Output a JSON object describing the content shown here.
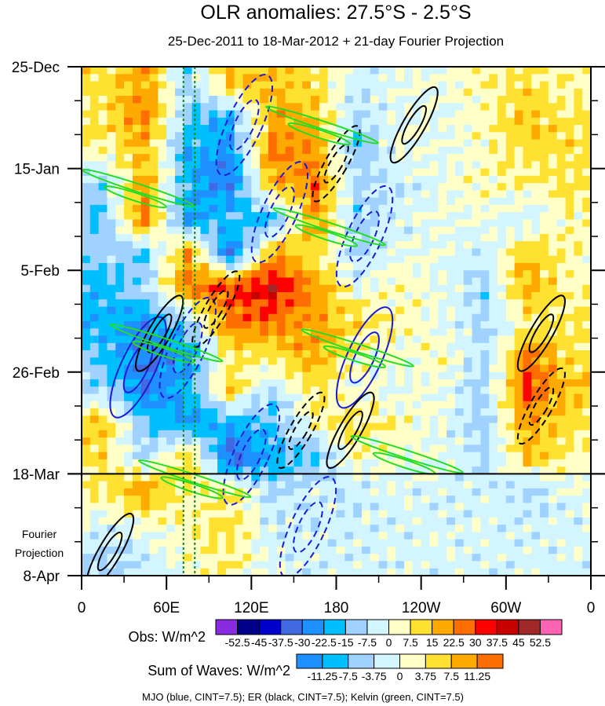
{
  "chart_data": {
    "type": "heatmap",
    "title": "OLR anomalies: 27.5°S - 2.5°S",
    "subtitle": "25-Dec-2011 to 18-Mar-2012 + 21-day Fourier Projection",
    "x_ticks": [
      {
        "lon": 0,
        "label": "0"
      },
      {
        "lon": 60,
        "label": "60E"
      },
      {
        "lon": 120,
        "label": "120E"
      },
      {
        "lon": 180,
        "label": "180"
      },
      {
        "lon": 240,
        "label": "120W"
      },
      {
        "lon": 300,
        "label": "60W"
      },
      {
        "lon": 360,
        "label": "0"
      }
    ],
    "y_ticks": [
      {
        "day": 0,
        "label": "25-Dec"
      },
      {
        "day": 21,
        "label": "15-Jan"
      },
      {
        "day": 42,
        "label": "5-Feb"
      },
      {
        "day": 63,
        "label": "26-Feb"
      },
      {
        "day": 84,
        "label": "18-Mar"
      },
      {
        "day": 105,
        "label": "8-Apr"
      }
    ],
    "ylim_days": [
      0,
      105
    ],
    "xlim_lon": [
      0,
      360
    ],
    "projection_start_day": 84,
    "projection_label": [
      "Fourier",
      "Projection"
    ],
    "grid_lons": [
      15,
      45,
      75,
      105,
      135,
      165,
      195,
      225,
      255,
      285,
      315,
      345
    ],
    "grid_days": [
      3.5,
      10.5,
      17.5,
      24.5,
      31.5,
      38.5,
      45.5,
      52.5,
      59.5,
      66.5,
      73.5,
      80.5,
      87.5,
      94.5,
      101.5
    ],
    "olr_values": [
      [
        10,
        20,
        -10,
        15,
        15,
        10,
        -5,
        0,
        0,
        5,
        10,
        5
      ],
      [
        10,
        25,
        -15,
        -20,
        20,
        15,
        -10,
        0,
        0,
        5,
        15,
        10
      ],
      [
        5,
        15,
        -20,
        -25,
        25,
        20,
        -15,
        0,
        0,
        5,
        10,
        10
      ],
      [
        -10,
        20,
        -20,
        -30,
        15,
        25,
        -10,
        -5,
        0,
        5,
        5,
        10
      ],
      [
        -15,
        25,
        -25,
        -15,
        -20,
        20,
        -10,
        -5,
        0,
        0,
        -5,
        5
      ],
      [
        -10,
        -15,
        20,
        -30,
        20,
        10,
        -10,
        0,
        0,
        -5,
        15,
        5
      ],
      [
        -20,
        -10,
        25,
        30,
        40,
        20,
        0,
        5,
        0,
        -10,
        20,
        5
      ],
      [
        -20,
        -25,
        -10,
        25,
        25,
        20,
        10,
        5,
        0,
        -10,
        5,
        10
      ],
      [
        -15,
        -30,
        -25,
        10,
        10,
        20,
        5,
        0,
        5,
        -10,
        25,
        10
      ],
      [
        -10,
        -30,
        -20,
        15,
        -10,
        10,
        0,
        0,
        0,
        -10,
        30,
        15
      ],
      [
        15,
        -15,
        -25,
        -20,
        -15,
        5,
        10,
        5,
        0,
        -10,
        20,
        10
      ],
      [
        10,
        -10,
        15,
        -35,
        -20,
        -15,
        5,
        0,
        0,
        -10,
        15,
        5
      ],
      [
        10,
        20,
        5,
        10,
        -10,
        -5,
        -5,
        -3,
        -3,
        -3,
        -10,
        0
      ],
      [
        -3,
        0,
        5,
        10,
        -5,
        -5,
        -3,
        -3,
        -3,
        -3,
        -3,
        -3
      ],
      [
        -10,
        -5,
        3,
        8,
        -3,
        -3,
        -3,
        -3,
        -3,
        -3,
        -3,
        -3
      ]
    ],
    "wave_contours": [
      {
        "wave": "MJO",
        "lon": 115,
        "day": 12,
        "sign": -1
      },
      {
        "wave": "MJO",
        "lon": 140,
        "day": 30,
        "sign": -1
      },
      {
        "wave": "MJO",
        "lon": 75,
        "day": 58,
        "sign": -1
      },
      {
        "wave": "MJO",
        "lon": 120,
        "day": 80,
        "sign": -1
      },
      {
        "wave": "MJO",
        "lon": 200,
        "day": 35,
        "sign": -1
      },
      {
        "wave": "MJO",
        "lon": 160,
        "day": 95,
        "sign": -1
      },
      {
        "wave": "MJO",
        "lon": 40,
        "day": 62,
        "sign": 1
      },
      {
        "wave": "MJO",
        "lon": 200,
        "day": 60,
        "sign": 1
      },
      {
        "wave": "ER",
        "lon": 235,
        "day": 12,
        "sign": 1
      },
      {
        "wave": "ER",
        "lon": 180,
        "day": 20,
        "sign": -1
      },
      {
        "wave": "ER",
        "lon": 55,
        "day": 55,
        "sign": 1
      },
      {
        "wave": "ER",
        "lon": 95,
        "day": 50,
        "sign": -1
      },
      {
        "wave": "ER",
        "lon": 325,
        "day": 55,
        "sign": 1
      },
      {
        "wave": "ER",
        "lon": 325,
        "day": 70,
        "sign": -1
      },
      {
        "wave": "ER",
        "lon": 190,
        "day": 75,
        "sign": 1
      },
      {
        "wave": "ER",
        "lon": 155,
        "day": 75,
        "sign": -1
      },
      {
        "wave": "ER",
        "lon": 20,
        "day": 100,
        "sign": 1
      },
      {
        "wave": "Kelvin",
        "lon": 40,
        "day": 25,
        "sign": 1
      },
      {
        "wave": "Kelvin",
        "lon": 170,
        "day": 12,
        "sign": 1
      },
      {
        "wave": "Kelvin",
        "lon": 175,
        "day": 33,
        "sign": 1
      },
      {
        "wave": "Kelvin",
        "lon": 60,
        "day": 57,
        "sign": 1
      },
      {
        "wave": "Kelvin",
        "lon": 195,
        "day": 58,
        "sign": 1
      },
      {
        "wave": "Kelvin",
        "lon": 230,
        "day": 80,
        "sign": 1
      },
      {
        "wave": "Kelvin",
        "lon": 80,
        "day": 85,
        "sign": 1
      }
    ],
    "reference_lons": [
      72,
      80
    ],
    "obs_colorbar": {
      "label": "Obs: W/m^2",
      "colors": [
        "#8a2be2",
        "#00008b",
        "#0000cd",
        "#4169e1",
        "#1e90ff",
        "#00bfff",
        "#a0d2ff",
        "#d2f5ff",
        "#ffffc8",
        "#ffe132",
        "#ffaa00",
        "#ff6e00",
        "#ff0000",
        "#c80000",
        "#a02828",
        "#ff64b4"
      ],
      "levels": [
        "-52.5",
        "-45",
        "-37.5",
        "-30",
        "-22.5",
        "-15",
        "-7.5",
        "0",
        "7.5",
        "15",
        "22.5",
        "30",
        "37.5",
        "45",
        "52.5"
      ],
      "level_values": [
        -52.5,
        -45,
        -37.5,
        -30,
        -22.5,
        -15,
        -7.5,
        0,
        7.5,
        15,
        22.5,
        30,
        37.5,
        45,
        52.5
      ]
    },
    "waves_colorbar": {
      "label": "Sum of Waves: W/m^2",
      "colors": [
        "#1e90ff",
        "#00bfff",
        "#a0d2ff",
        "#d2f5ff",
        "#ffffc8",
        "#ffe132",
        "#ffaa00",
        "#ff6e00"
      ],
      "levels": [
        "-11.25",
        "-7.5",
        "-3.75",
        "0",
        "3.75",
        "7.5",
        "11.25"
      ]
    },
    "footer": "MJO (blue, CINT=7.5); ER (black, CINT=7.5); Kelvin (green, CINT=7.5)",
    "wave_colors": {
      "MJO": "#1a1ad8",
      "ER": "#000000",
      "Kelvin": "#22dd22"
    }
  }
}
